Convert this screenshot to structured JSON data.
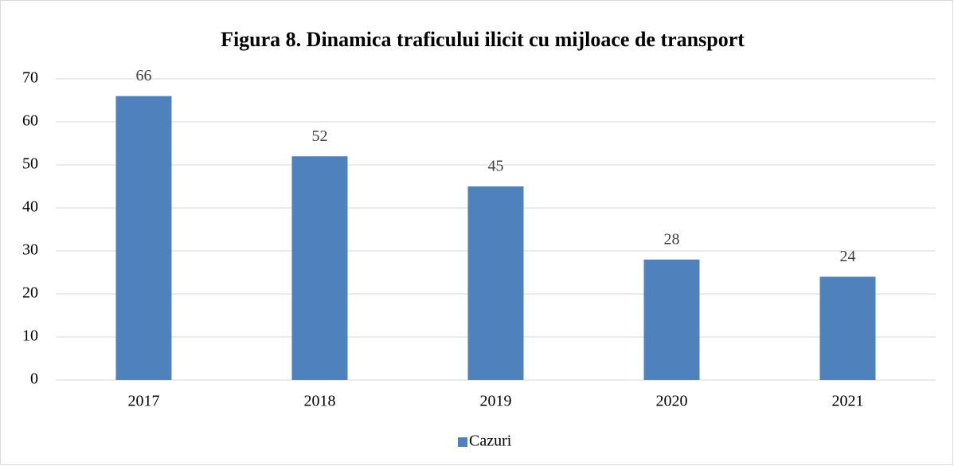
{
  "chart_data": {
    "type": "bar",
    "title": "Figura 8. Dinamica traficului ilicit cu mijloace de transport",
    "categories": [
      "2017",
      "2018",
      "2019",
      "2020",
      "2021"
    ],
    "series": [
      {
        "name": "Cazuri",
        "color": "#4f81bd",
        "values": [
          66,
          52,
          45,
          28,
          24
        ]
      }
    ],
    "ylim": [
      0,
      70
    ],
    "yticks": [
      0,
      10,
      20,
      30,
      40,
      50,
      60,
      70
    ],
    "grid": true,
    "legend": "bottom",
    "data_labels": true
  }
}
